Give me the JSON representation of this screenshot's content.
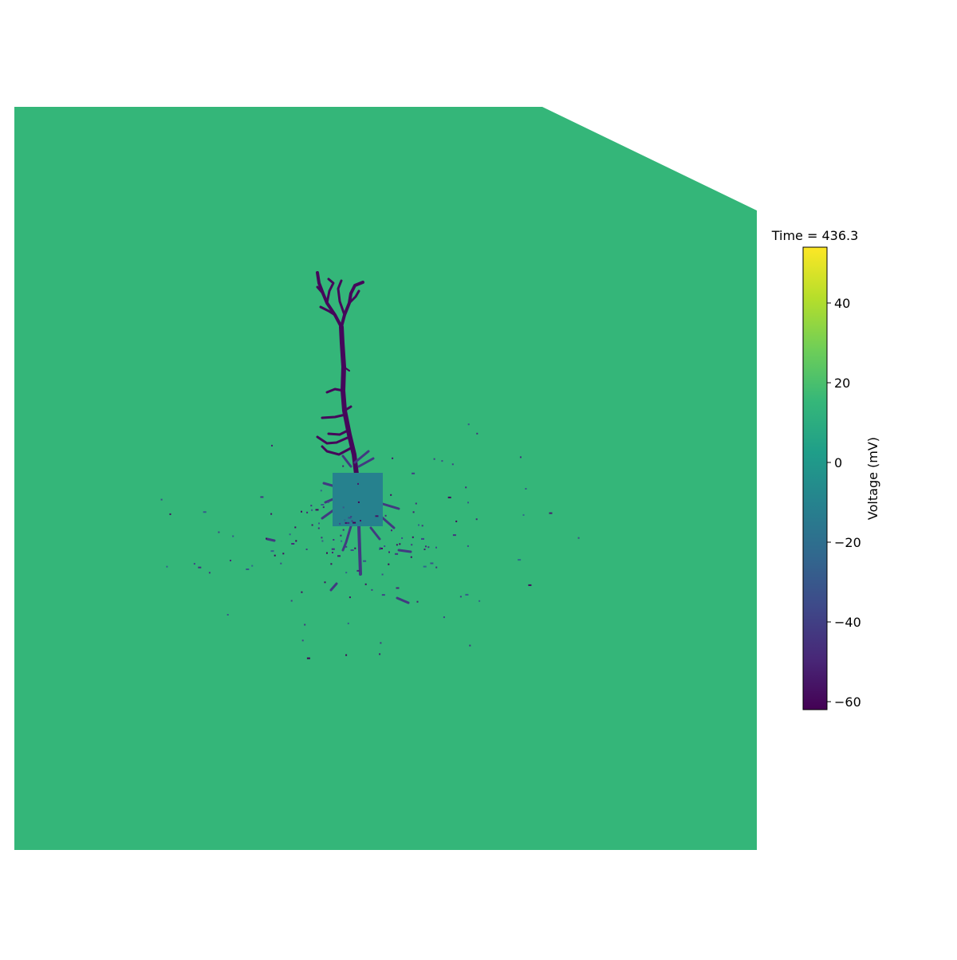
{
  "chart_data": {
    "type": "heatmap",
    "title": "Time = 436.3",
    "colorbar": {
      "label": "Voltage (mV)",
      "range": [
        -62,
        54
      ],
      "ticks": [
        -60,
        -40,
        -20,
        0,
        20,
        40
      ],
      "tick_labels": [
        "−60",
        "−40",
        "−20",
        "0",
        "20",
        "40"
      ],
      "colormap": "viridis",
      "placement": "right"
    },
    "background_voltage": 15,
    "soma_voltage": -11,
    "apical_dendrite_voltage": -60,
    "basal_dendrite_voltage": -42,
    "grid": false,
    "axes_visible": false
  },
  "colors": {
    "viridis": [
      "#440154",
      "#482878",
      "#3e4989",
      "#31688e",
      "#26828e",
      "#1f9e89",
      "#35b779",
      "#6ece58",
      "#b5de2b",
      "#fde725"
    ]
  }
}
